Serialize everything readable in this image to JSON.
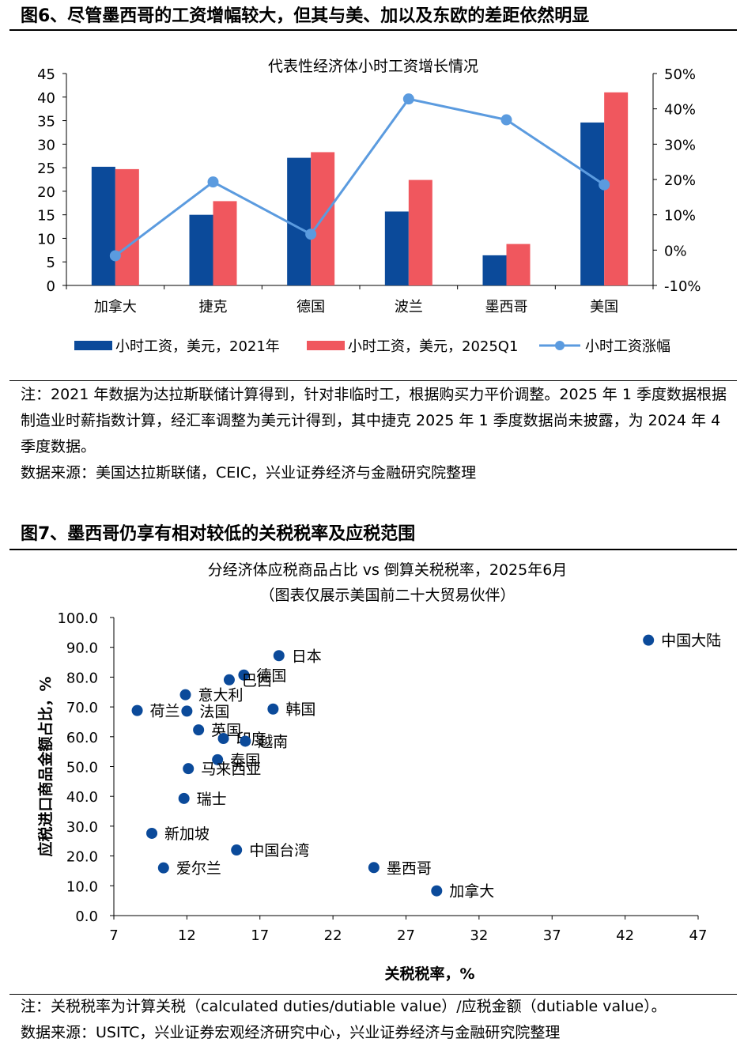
{
  "fig6": {
    "heading": "图6、尽管墨西哥的工资增幅较大，但其与美、加以及东欧的差距依然明显",
    "note": "注：2021 年数据为达拉斯联储计算得到，针对非临时工，根据购买力平价调整。2025 年 1 季度数据根据制造业时薪指数计算，经汇率调整为美元计得到，其中捷克 2025 年 1 季度数据尚未披露，为 2024 年 4 季度数据。",
    "source": "数据来源：美国达拉斯联储，CEIC，兴业证券经济与金融研究院整理"
  },
  "fig7": {
    "heading": "图7、墨西哥仍享有相对较低的关税税率及应税范围",
    "note": "注：关税税率为计算关税（calculated duties/dutiable value）/应税金额（dutiable value）。",
    "source": "数据来源：USITC，兴业证券宏观经济研究中心，兴业证券经济与金融研究院整理"
  },
  "chart_data": [
    {
      "type": "bar",
      "title": "代表性经济体小时工资增长情况",
      "categories": [
        "加拿大",
        "捷克",
        "德国",
        "波兰",
        "墨西哥",
        "美国"
      ],
      "series": [
        {
          "name": "小时工资，美元，2021年",
          "type": "bar",
          "axis": "left",
          "color": "#0b4a9a",
          "values": [
            25.2,
            15.0,
            27.1,
            15.7,
            6.4,
            34.6
          ]
        },
        {
          "name": "小时工资，美元，2025Q1",
          "type": "bar",
          "axis": "left",
          "color": "#f0575e",
          "values": [
            24.7,
            17.9,
            28.3,
            22.4,
            8.8,
            41.0
          ]
        },
        {
          "name": "小时工资涨幅",
          "type": "line",
          "axis": "right",
          "unit": "%",
          "color": "#5b9bdf",
          "values": [
            -1.6,
            19.3,
            4.5,
            42.8,
            36.9,
            18.5
          ]
        }
      ],
      "ylim_left": [
        0,
        45
      ],
      "yticks_left": [
        "0",
        "5",
        "10",
        "15",
        "20",
        "25",
        "30",
        "35",
        "40",
        "45"
      ],
      "ylim_right": [
        -10,
        50
      ],
      "yticks_right": [
        "-10%",
        "0%",
        "10%",
        "20%",
        "30%",
        "40%",
        "50%"
      ],
      "legend": "bottom",
      "grid": false
    },
    {
      "type": "scatter",
      "title": "分经济体应税商品占比 vs 倒算关税税率，2025年6月",
      "subtitle": "（图表仅展示美国前二十大贸易伙伴）",
      "xlabel": "关税税率，%",
      "ylabel": "应税进口商品金额占比，%",
      "xlim": [
        7,
        47
      ],
      "xticks": [
        "7",
        "12",
        "17",
        "22",
        "27",
        "32",
        "37",
        "42",
        "47"
      ],
      "ylim": [
        0,
        100
      ],
      "yticks": [
        "0.0",
        "10.0",
        "20.0",
        "30.0",
        "40.0",
        "50.0",
        "60.0",
        "70.0",
        "80.0",
        "90.0",
        "100.0"
      ],
      "color": "#0b4a9a",
      "points": [
        {
          "label": "中国大陆",
          "x": 43.6,
          "y": 92.4
        },
        {
          "label": "日本",
          "x": 18.3,
          "y": 87.2
        },
        {
          "label": "德国",
          "x": 15.9,
          "y": 80.7
        },
        {
          "label": "巴西",
          "x": 14.9,
          "y": 79.1
        },
        {
          "label": "意大利",
          "x": 11.9,
          "y": 74.1
        },
        {
          "label": "韩国",
          "x": 17.9,
          "y": 69.3
        },
        {
          "label": "荷兰",
          "x": 8.6,
          "y": 68.8
        },
        {
          "label": "法国",
          "x": 12.0,
          "y": 68.6
        },
        {
          "label": "英国",
          "x": 12.8,
          "y": 62.3
        },
        {
          "label": "印度",
          "x": 14.5,
          "y": 59.4
        },
        {
          "label": "越南",
          "x": 16.0,
          "y": 58.5
        },
        {
          "label": "泰国",
          "x": 14.1,
          "y": 52.3
        },
        {
          "label": "马来西亚",
          "x": 12.1,
          "y": 49.3
        },
        {
          "label": "瑞士",
          "x": 11.8,
          "y": 39.3
        },
        {
          "label": "新加坡",
          "x": 9.6,
          "y": 27.6
        },
        {
          "label": "中国台湾",
          "x": 15.4,
          "y": 22.0
        },
        {
          "label": "爱尔兰",
          "x": 10.4,
          "y": 16.0
        },
        {
          "label": "墨西哥",
          "x": 24.8,
          "y": 16.1
        },
        {
          "label": "加拿大",
          "x": 29.1,
          "y": 8.3
        }
      ],
      "legend": "none",
      "grid": false
    }
  ]
}
